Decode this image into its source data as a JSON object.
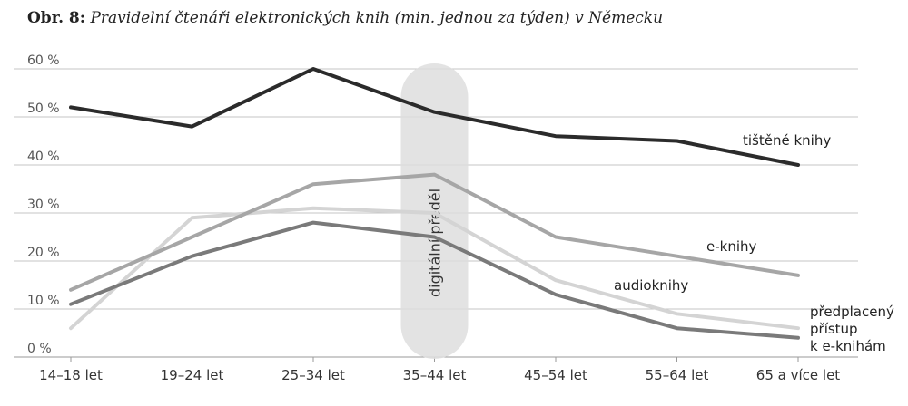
{
  "header": {
    "label": "Obr. 8:",
    "title": "Pravidelní čtenáři elektronických knih (min. jednou za týden) v Německu"
  },
  "chart_data": {
    "type": "line",
    "categories": [
      "14–18 let",
      "19–24 let",
      "25–34 let",
      "35–44 let",
      "45–54 let",
      "55–64 let",
      "65 a více let"
    ],
    "ylim": [
      0,
      60
    ],
    "yticks": [
      0,
      10,
      20,
      30,
      40,
      50,
      60
    ],
    "ytick_labels": [
      "0 %",
      "10 %",
      "20 %",
      "30 %",
      "40 %",
      "50 %",
      "60 %"
    ],
    "grid": true,
    "annotation": {
      "text": "digitální předěl",
      "category": "35–44 let"
    },
    "series": [
      {
        "name": "tištěné knihy",
        "color": "#2b2b2b",
        "values": [
          52,
          48,
          60,
          51,
          46,
          45,
          40
        ]
      },
      {
        "name": "e-knihy",
        "color": "#a6a6a6",
        "values": [
          14,
          25,
          36,
          38,
          25,
          21,
          17
        ]
      },
      {
        "name": "audioknihy",
        "color": "#d4d4d4",
        "values": [
          6,
          29,
          31,
          30,
          16,
          9,
          6
        ]
      },
      {
        "name": "předplacený přístup k e-knihám",
        "color": "#7a7a7a",
        "values": [
          11,
          21,
          28,
          25,
          13,
          6,
          4
        ]
      }
    ]
  }
}
